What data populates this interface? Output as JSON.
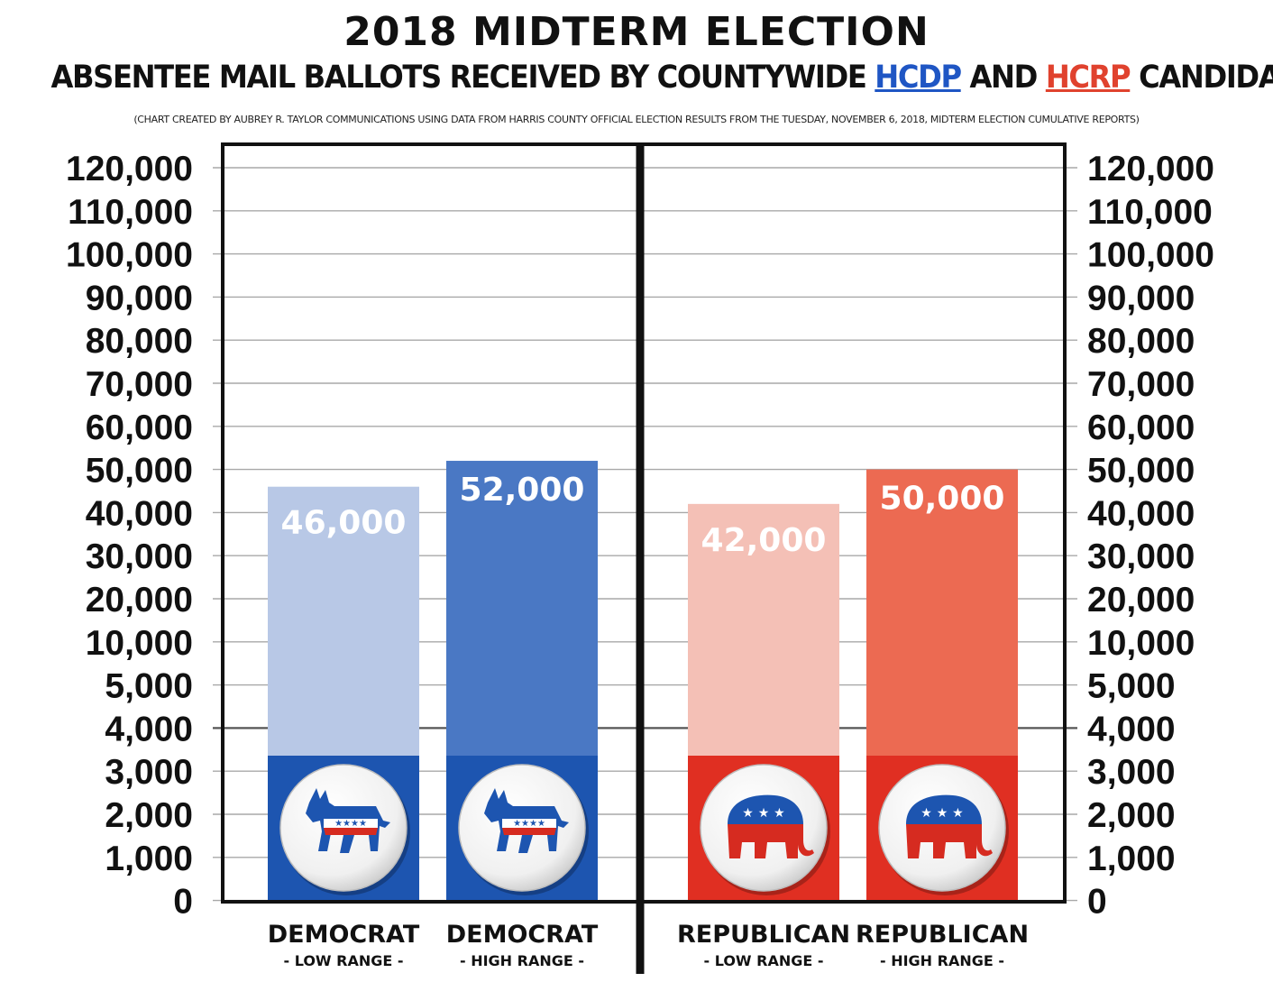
{
  "header": {
    "title": "2018 MIDTERM ELECTION",
    "subtitle_pre": "ABSENTEE MAIL BALLOTS RECEIVED BY COUNTYWIDE ",
    "subtitle_dem": "HCDP",
    "subtitle_mid": " AND ",
    "subtitle_rep": "HCRP",
    "subtitle_post": " CANDIDATES",
    "source": "(CHART CREATED BY AUBREY R. TAYLOR COMMUNICATIONS USING DATA FROM HARRIS COUNTY OFFICIAL ELECTION RESULTS FROM THE TUESDAY, NOVEMBER 6, 2018, MIDTERM ELECTION CUMULATIVE REPORTS)"
  },
  "colors": {
    "dem_low": "#b8c8e6",
    "dem_high": "#4a78c4",
    "dem_base": "#1d55b0",
    "rep_low": "#f4c0b6",
    "rep_high": "#ec6a52",
    "rep_base": "#e02f22",
    "grid": "#a8a8a8",
    "frame": "#111111"
  },
  "icons": {
    "democrat": "donkey-icon",
    "republican": "elephant-icon"
  },
  "chart_data": {
    "type": "bar",
    "title": "2018 MIDTERM ELECTION",
    "subtitle": "ABSENTEE MAIL BALLOTS RECEIVED BY COUNTYWIDE HCDP AND HCRP CANDIDATES",
    "y_ticks": [
      "120,000",
      "110,000",
      "100,000",
      "90,000",
      "80,000",
      "70,000",
      "60,000",
      "50,000",
      "40,000",
      "30,000",
      "20,000",
      "10,000",
      "5,000",
      "4,000",
      "3,000",
      "2,000",
      "1,000",
      "0"
    ],
    "y_scale": "non-linear",
    "ylim": [
      0,
      120000
    ],
    "categories": [
      {
        "name": "DEMOCRAT",
        "sub": "- LOW RANGE -"
      },
      {
        "name": "DEMOCRAT",
        "sub": "- HIGH RANGE -"
      },
      {
        "name": "REPUBLICAN",
        "sub": "- LOW RANGE -"
      },
      {
        "name": "REPUBLICAN",
        "sub": "- HIGH RANGE -"
      }
    ],
    "values": [
      46000,
      52000,
      42000,
      50000
    ],
    "value_labels": [
      "46,000",
      "52,000",
      "42,000",
      "50,000"
    ],
    "series_party": [
      "democrat",
      "democrat",
      "republican",
      "republican"
    ],
    "grid": true,
    "legend": "none"
  }
}
